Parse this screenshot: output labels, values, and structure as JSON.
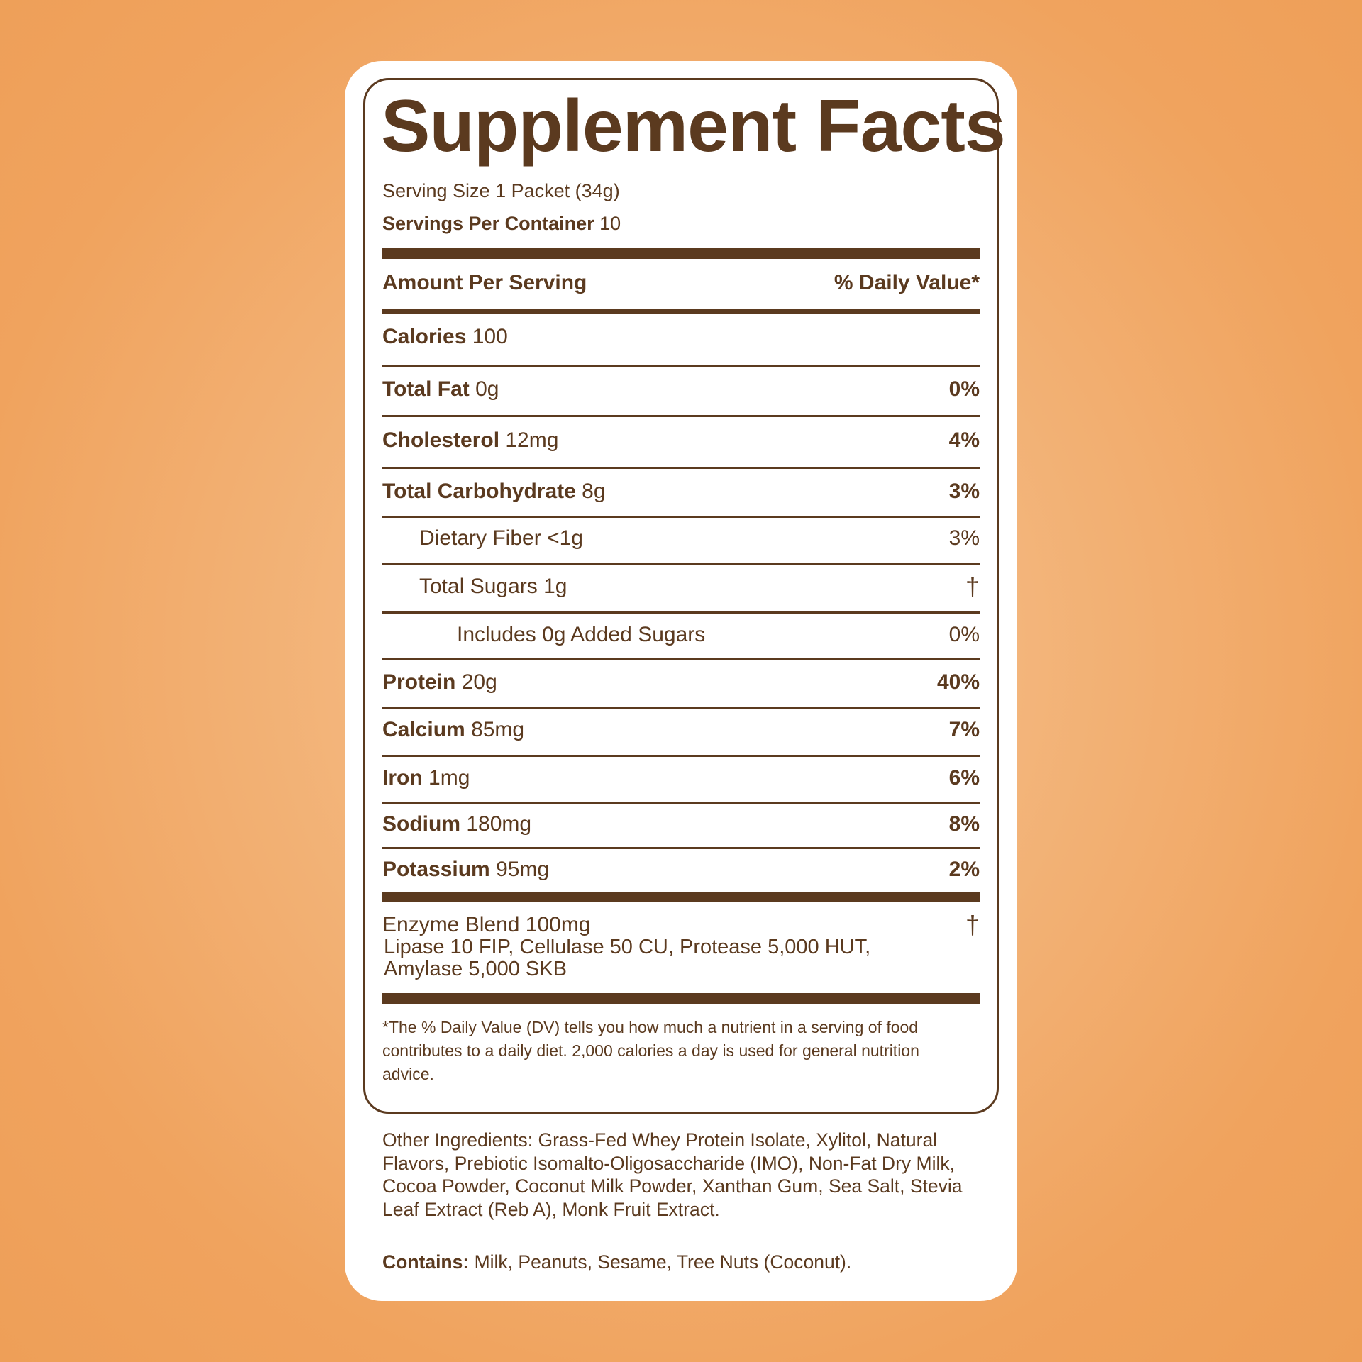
{
  "title": "Supplement Facts",
  "serving_size": {
    "label": "Serving Size",
    "value": "1 Packet (34g)"
  },
  "servings_per_container": {
    "label": "Servings Per Container",
    "value": "10"
  },
  "header": {
    "left": "Amount Per Serving",
    "right": "% Daily Value*"
  },
  "calories": {
    "label": "Calories",
    "value": "100"
  },
  "nutrients": [
    {
      "label": "Total Fat",
      "amount": "0g",
      "dv": "0%",
      "bold": true,
      "indent": 0
    },
    {
      "label": "Cholesterol",
      "amount": "12mg",
      "dv": "4%",
      "bold": true,
      "indent": 0
    },
    {
      "label": "Total Carbohydrate",
      "amount": "8g",
      "dv": "3%",
      "bold": true,
      "indent": 0
    },
    {
      "label": "Dietary Fiber",
      "amount": "<1g",
      "dv": "3%",
      "bold": false,
      "indent": 1
    },
    {
      "label": "Total Sugars",
      "amount": "1g",
      "dv": "†",
      "bold": false,
      "indent": 1
    },
    {
      "label": "Includes 0g Added Sugars",
      "amount": "",
      "dv": "0%",
      "bold": false,
      "indent": 2
    },
    {
      "label": "Protein",
      "amount": "20g",
      "dv": "40%",
      "bold": true,
      "indent": 0
    },
    {
      "label": "Calcium",
      "amount": "85mg",
      "dv": "7%",
      "bold": true,
      "indent": 0
    },
    {
      "label": "Iron",
      "amount": "1mg",
      "dv": "6%",
      "bold": true,
      "indent": 0
    },
    {
      "label": "Sodium",
      "amount": "180mg",
      "dv": "8%",
      "bold": true,
      "indent": 0
    },
    {
      "label": "Potassium",
      "amount": "95mg",
      "dv": "2%",
      "bold": true,
      "indent": 0
    }
  ],
  "enzyme_blend": {
    "label": "Enzyme Blend 100mg",
    "dv": "†",
    "line1": "Lipase 10 FIP, Cellulase 50 CU, Protease 5,000 HUT,",
    "line2": "Amylase 5,000 SKB"
  },
  "footnote": "*The % Daily Value (DV) tells you how much a nutrient in a serving of food contributes to a daily diet. 2,000 calories a day is used for general nutrition advice.",
  "other_ingredients": "Other Ingredients: Grass-Fed Whey Protein Isolate, Xylitol, Natural Flavors, Prebiotic Isomalto-Oligosaccharide (IMO), Non-Fat Dry Milk, Cocoa Powder, Coconut Milk Powder, Xanthan Gum, Sea Salt, Stevia Leaf Extract (Reb A), Monk Fruit Extract.",
  "contains": {
    "label": "Contains:",
    "value": "Milk, Peanuts, Sesame, Tree Nuts (Coconut)."
  },
  "colors": {
    "text": "#5b3a1f",
    "background": "#f0a35e",
    "card": "#ffffff"
  }
}
